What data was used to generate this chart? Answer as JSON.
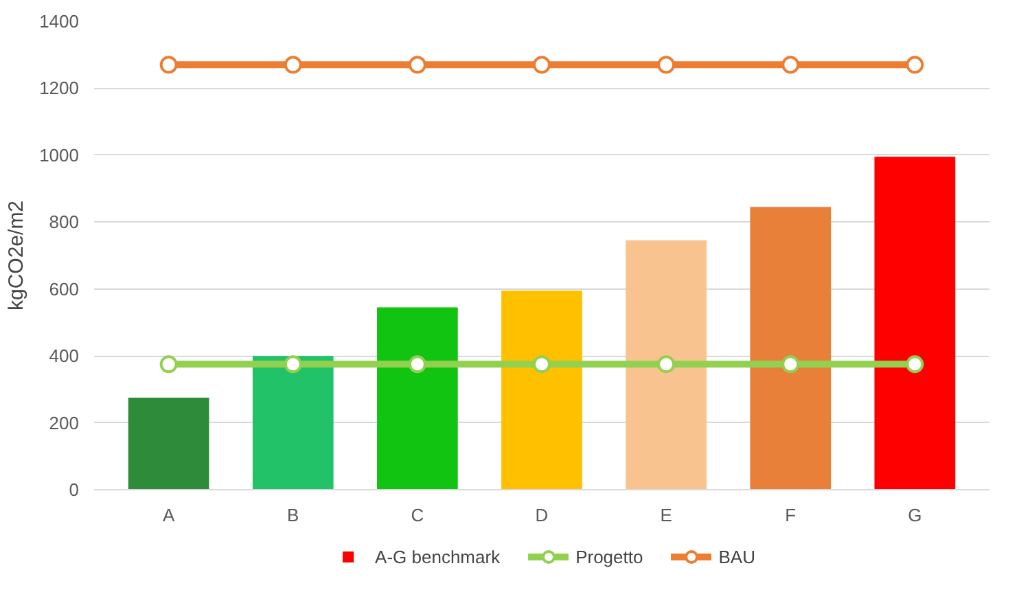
{
  "chart_data": {
    "type": "bar",
    "ylabel": "kgCO2e/m2",
    "categories": [
      "A",
      "B",
      "C",
      "D",
      "E",
      "F",
      "G"
    ],
    "series": [
      {
        "name": "A-G benchmark",
        "colors": [
          "#2e8b3a",
          "#22c268",
          "#11c411",
          "#ffc000",
          "#f8c38e",
          "#e8803a",
          "#ff0000"
        ],
        "values": [
          275,
          400,
          545,
          595,
          745,
          845,
          995
        ]
      },
      {
        "name": "Progetto",
        "type": "line",
        "color": "#92d050",
        "marker": "circle",
        "values": [
          375,
          375,
          375,
          375,
          375,
          375,
          375
        ]
      },
      {
        "name": "BAU",
        "type": "line",
        "color": "#ed7d31",
        "marker": "circle",
        "values": [
          1270,
          1270,
          1270,
          1270,
          1270,
          1270,
          1270
        ]
      }
    ],
    "ylim": [
      0,
      1400
    ],
    "yticks": [
      0,
      200,
      400,
      600,
      800,
      1000,
      1200,
      1400
    ],
    "grid": "y",
    "legend": "bottom"
  }
}
